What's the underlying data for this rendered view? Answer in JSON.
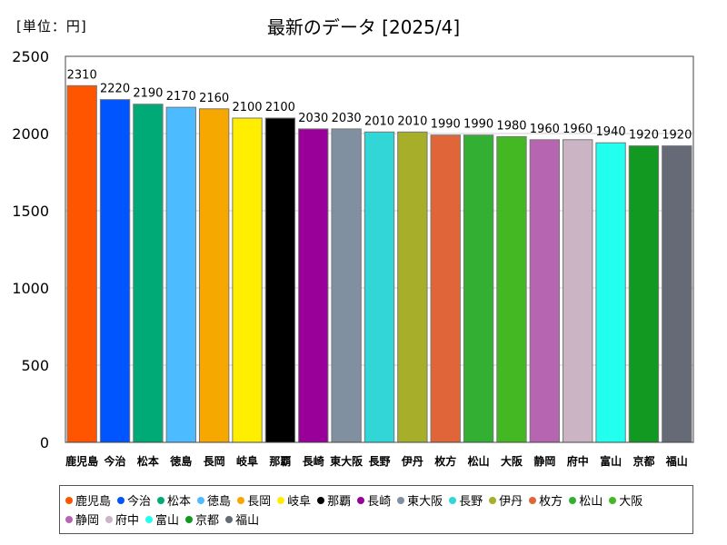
{
  "header": {
    "unit": "[単位：円]",
    "title": "最新のデータ [2025/4]"
  },
  "chart_data": {
    "type": "bar",
    "title": "最新のデータ [2025/4]",
    "ylabel": "[単位：円]",
    "xlabel": "",
    "ylim": [
      0,
      2500
    ],
    "yticks": [
      0,
      500,
      1000,
      1500,
      2000,
      2500
    ],
    "grid": true,
    "legend": "bottom",
    "categories": [
      "鹿児島",
      "今治",
      "松本",
      "徳島",
      "長岡",
      "岐阜",
      "那覇",
      "長崎",
      "東大阪",
      "長野",
      "伊丹",
      "枚方",
      "松山",
      "大阪",
      "静岡",
      "府中",
      "富山",
      "京都",
      "福山"
    ],
    "values": [
      2310,
      2220,
      2190,
      2170,
      2160,
      2100,
      2100,
      2030,
      2030,
      2010,
      2010,
      1990,
      1990,
      1980,
      1960,
      1960,
      1940,
      1920,
      1920
    ],
    "colors": [
      "#ff5500",
      "#0055ff",
      "#00aa77",
      "#4dbbff",
      "#f7a800",
      "#ffee00",
      "#000000",
      "#990099",
      "#8090a0",
      "#33d6d6",
      "#a6ae2a",
      "#e0663a",
      "#33b033",
      "#44b822",
      "#b666b0",
      "#cbb5c5",
      "#22ffee",
      "#119922",
      "#666a77"
    ]
  }
}
